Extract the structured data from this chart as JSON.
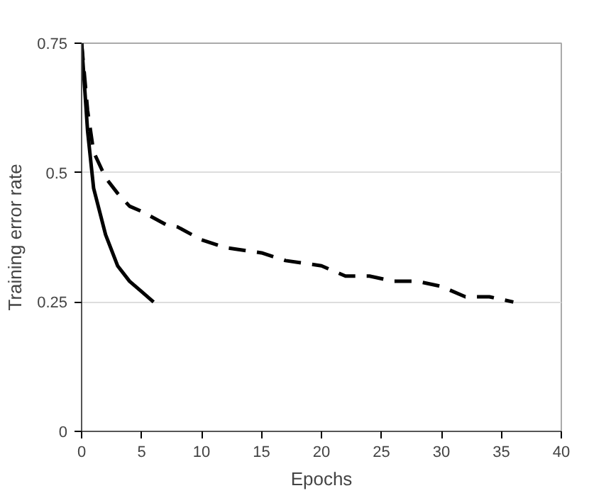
{
  "chart_data": {
    "type": "line",
    "xlabel": "Epochs",
    "ylabel": "Training error rate",
    "xlim": [
      0,
      40
    ],
    "ylim": [
      0,
      0.75
    ],
    "xticks": [
      0,
      5,
      10,
      15,
      20,
      25,
      30,
      35,
      40
    ],
    "yticks": [
      0,
      {
        "value": 0.25,
        "label": "0.25"
      },
      {
        "value": 0.5,
        "label": "0.5"
      },
      {
        "value": 0.75,
        "label": "0.75"
      }
    ],
    "grid": "y",
    "series": [
      {
        "color": "#000000",
        "line_style": "solid",
        "x": [
          0,
          0.5,
          1,
          2,
          3,
          4,
          5,
          6
        ],
        "values": [
          0.75,
          0.58,
          0.47,
          0.38,
          0.32,
          0.29,
          0.27,
          0.25
        ]
      },
      {
        "color": "#000000",
        "line_style": "dashed",
        "x": [
          0,
          0.5,
          1,
          2,
          3,
          4,
          5,
          7,
          8,
          10,
          12,
          15,
          17,
          20,
          22,
          24,
          26,
          28,
          30,
          32,
          34,
          36
        ],
        "values": [
          0.75,
          0.62,
          0.54,
          0.49,
          0.46,
          0.435,
          0.425,
          0.4,
          0.395,
          0.37,
          0.355,
          0.345,
          0.33,
          0.32,
          0.3,
          0.3,
          0.29,
          0.29,
          0.28,
          0.26,
          0.26,
          0.25
        ]
      }
    ]
  }
}
